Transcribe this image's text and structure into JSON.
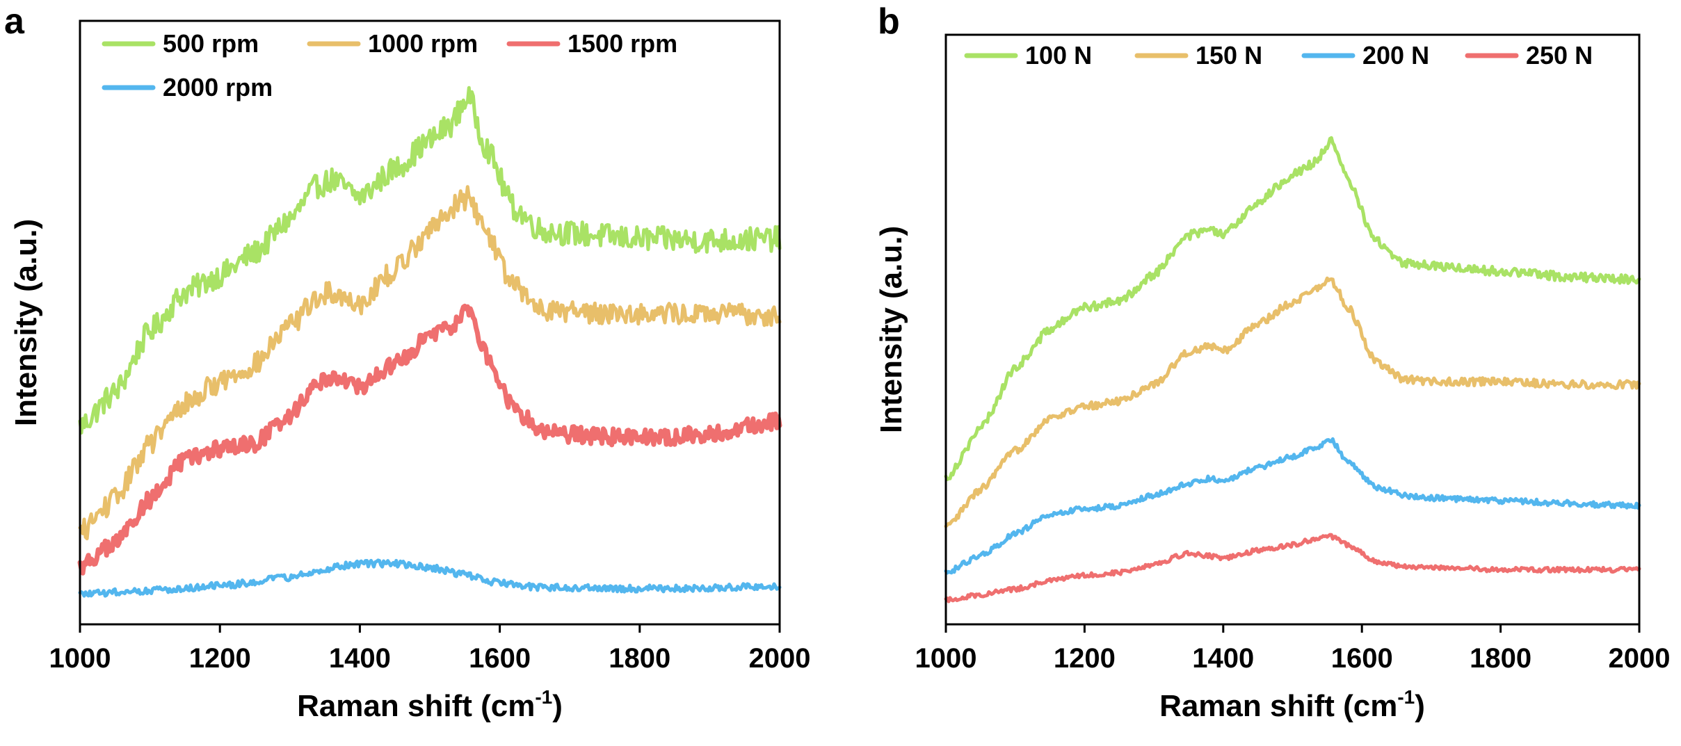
{
  "figure": {
    "panels": [
      "a",
      "b"
    ]
  },
  "chart_data": [
    {
      "type": "line",
      "panel": "a",
      "xlabel": "Raman shift (cm",
      "xlabel_sup": "-1",
      "xlabel_close": ")",
      "ylabel": "Intensity (a.u.)",
      "xlim": [
        1000,
        2000
      ],
      "ylim": [
        0,
        100
      ],
      "xticks": [
        "1000",
        "1200",
        "1400",
        "1600",
        "1800",
        "2000"
      ],
      "xtick_values": [
        1000,
        1200,
        1400,
        1600,
        1800,
        2000
      ],
      "legend": "top",
      "series": [
        {
          "name": "500 rpm",
          "color": "#a9e265",
          "noise": 2.2,
          "width": 5,
          "x": [
            1000,
            1050,
            1100,
            1150,
            1200,
            1250,
            1300,
            1340,
            1360,
            1400,
            1450,
            1500,
            1530,
            1555,
            1580,
            1620,
            1660,
            1700,
            1800,
            1900,
            2000
          ],
          "y": [
            35,
            41,
            52,
            59,
            62,
            66,
            72,
            78,
            79,
            76,
            81,
            86,
            89,
            94,
            85,
            74,
            70,
            69.5,
            68.5,
            68.2,
            68.5
          ]
        },
        {
          "name": "1000 rpm",
          "color": "#e8bf6a",
          "noise": 2.0,
          "width": 5,
          "x": [
            1000,
            1050,
            1100,
            1150,
            1200,
            1250,
            1300,
            1340,
            1360,
            1400,
            1450,
            1500,
            1530,
            1555,
            1580,
            1620,
            1660,
            1700,
            1800,
            1900,
            2000
          ],
          "y": [
            16,
            22,
            32,
            39,
            43,
            46,
            53,
            58,
            59,
            57,
            63,
            70,
            74,
            76,
            70,
            60,
            56,
            55.5,
            55.2,
            55,
            55
          ]
        },
        {
          "name": "1500 rpm",
          "color": "#ef6f6f",
          "noise": 1.5,
          "width": 7,
          "x": [
            1000,
            1050,
            1100,
            1150,
            1200,
            1250,
            1300,
            1340,
            1360,
            1400,
            1450,
            1500,
            1530,
            1555,
            1580,
            1620,
            1660,
            1700,
            1800,
            1900,
            2000
          ],
          "y": [
            10,
            14,
            22,
            29,
            31,
            32,
            37,
            43,
            44,
            42,
            46,
            51,
            53,
            56,
            48,
            38,
            34.5,
            33.5,
            33,
            33.5,
            36
          ]
        },
        {
          "name": "2000 rpm",
          "color": "#53b6ee",
          "noise": 0.6,
          "width": 5,
          "x": [
            1000,
            1100,
            1200,
            1300,
            1350,
            1400,
            1450,
            1500,
            1550,
            1600,
            1650,
            1700,
            1800,
            1900,
            2000
          ],
          "y": [
            5,
            5.7,
            6.5,
            8,
            9.5,
            10.5,
            10.5,
            9.8,
            8.5,
            7,
            6.3,
            6.2,
            6,
            6.1,
            6.5
          ]
        }
      ]
    },
    {
      "type": "line",
      "panel": "b",
      "xlabel": "Raman shift (cm",
      "xlabel_sup": "-1",
      "xlabel_close": ")",
      "ylabel": "Intensity (a.u.)",
      "xlim": [
        1000,
        2000
      ],
      "ylim": [
        0,
        100
      ],
      "xticks": [
        "1000",
        "1200",
        "1400",
        "1600",
        "1800",
        "2000"
      ],
      "xtick_values": [
        1000,
        1200,
        1400,
        1600,
        1800,
        2000
      ],
      "legend": "top",
      "series": [
        {
          "name": "100 N",
          "color": "#a9e265",
          "noise": 0.8,
          "width": 5,
          "x": [
            1000,
            1050,
            1100,
            1150,
            1200,
            1250,
            1300,
            1350,
            1380,
            1400,
            1450,
            1500,
            1530,
            1555,
            1580,
            1620,
            1660,
            1700,
            1800,
            1900,
            2000
          ],
          "y": [
            26,
            35,
            46,
            53,
            57,
            58,
            63,
            70,
            71,
            70,
            76,
            81,
            83,
            87,
            80,
            69,
            65,
            64.5,
            63.5,
            62.5,
            62
          ]
        },
        {
          "name": "150 N",
          "color": "#e8bf6a",
          "noise": 0.7,
          "width": 5,
          "x": [
            1000,
            1050,
            1100,
            1150,
            1200,
            1250,
            1300,
            1350,
            1380,
            1400,
            1450,
            1500,
            1530,
            1555,
            1580,
            1620,
            1660,
            1700,
            1800,
            1900,
            2000
          ],
          "y": [
            17,
            24,
            31,
            37,
            39,
            40,
            43,
            49,
            50,
            49,
            54,
            58,
            60,
            62,
            57,
            47,
            44,
            43.5,
            43.5,
            43,
            43
          ]
        },
        {
          "name": "200 N",
          "color": "#53b6ee",
          "noise": 0.5,
          "width": 5,
          "x": [
            1000,
            1050,
            1100,
            1150,
            1200,
            1250,
            1300,
            1350,
            1380,
            1400,
            1450,
            1500,
            1530,
            1555,
            1580,
            1620,
            1660,
            1700,
            1800,
            1900,
            2000
          ],
          "y": [
            9,
            12,
            16,
            19.5,
            20.5,
            21,
            23,
            25,
            26,
            25.5,
            28,
            30,
            31.5,
            33,
            29,
            24.5,
            23,
            22.5,
            22,
            21.5,
            21
          ]
        },
        {
          "name": "250 N",
          "color": "#ef6f6f",
          "noise": 0.4,
          "width": 5,
          "x": [
            1000,
            1050,
            1100,
            1150,
            1200,
            1250,
            1300,
            1350,
            1380,
            1400,
            1450,
            1500,
            1530,
            1555,
            1580,
            1620,
            1660,
            1700,
            1800,
            1900,
            2000
          ],
          "y": [
            4,
            5,
            6,
            7.5,
            8.5,
            9,
            10.5,
            12.5,
            12,
            11.5,
            13,
            14,
            15,
            15.5,
            14,
            11,
            10,
            10,
            9.5,
            9.5,
            9.5
          ]
        }
      ]
    }
  ]
}
